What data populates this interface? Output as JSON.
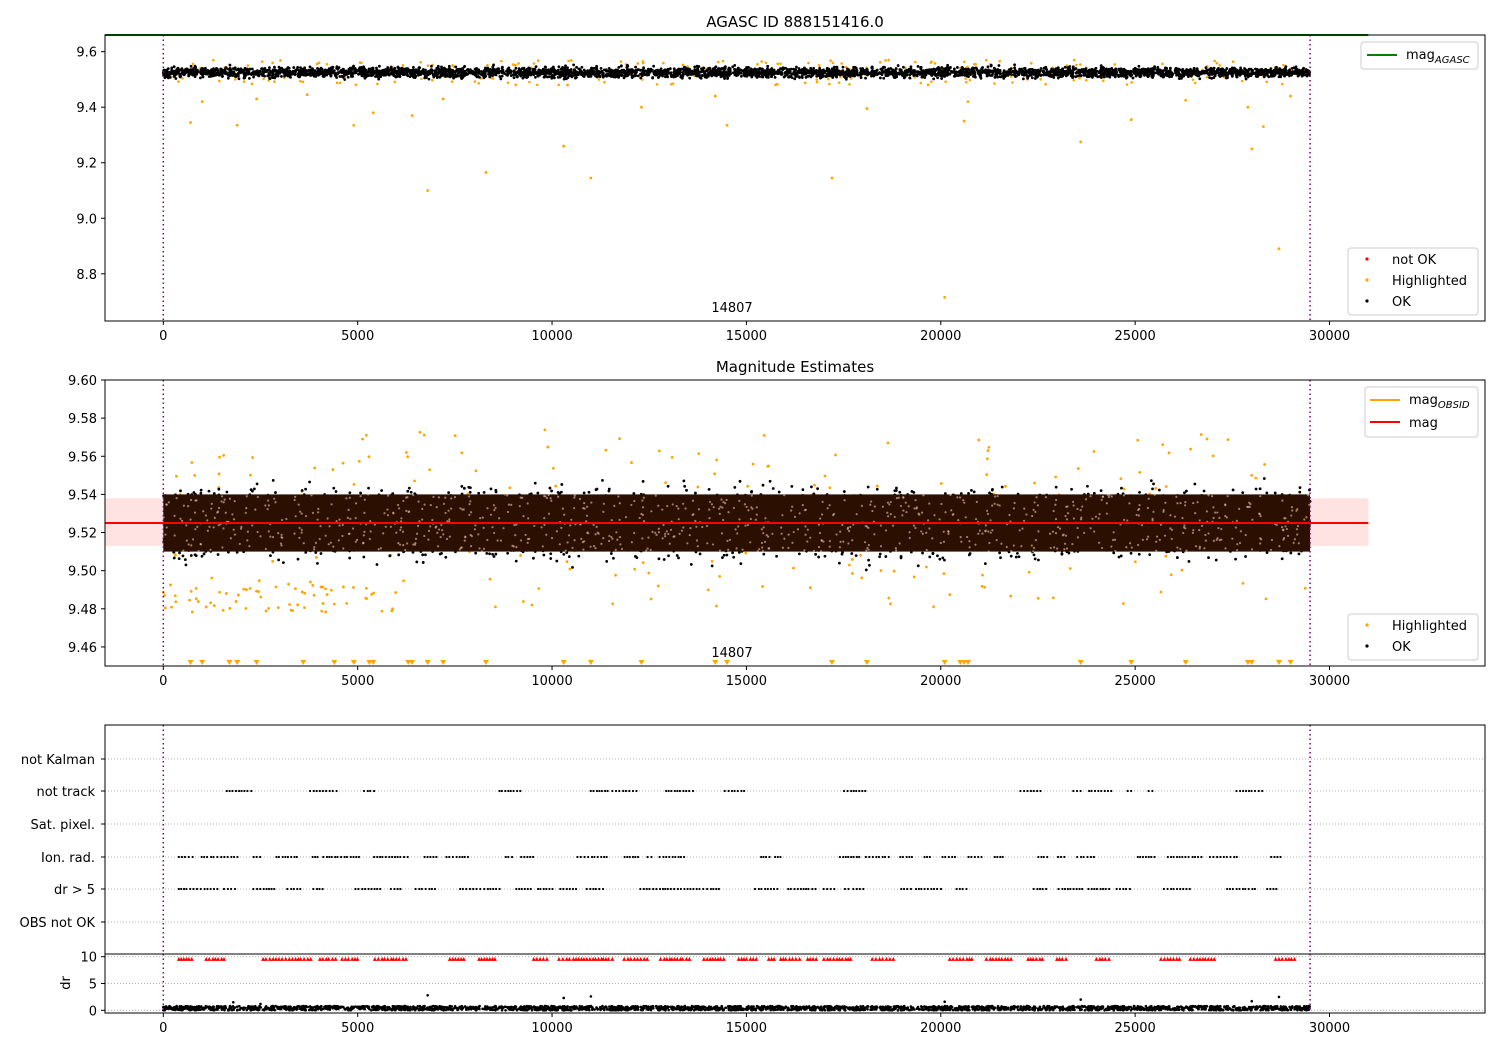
{
  "chart_data": [
    {
      "type": "scatter",
      "title": "AGASC ID 888151416.0",
      "xlim": [
        -1500,
        34000
      ],
      "ylim": [
        8.63,
        9.66
      ],
      "xticks": [
        "0",
        "5000",
        "10000",
        "15000",
        "20000",
        "25000",
        "30000"
      ],
      "yticks": [
        "8.8",
        "9.0",
        "9.2",
        "9.4",
        "9.6"
      ],
      "obsid_label": "14807",
      "vlines_x": [
        0,
        29500
      ],
      "lines": [
        {
          "name": "mag_AGASC",
          "color": "#008000",
          "y": 9.66,
          "x_range": [
            -1500,
            31000
          ]
        }
      ],
      "series": [
        {
          "name": "not OK",
          "color": "#ff0000",
          "points": []
        },
        {
          "name": "Highlighted",
          "color": "#ffa500",
          "y_band": [
            9.48,
            9.57
          ],
          "outliers": [
            [
              700,
              9.345
            ],
            [
              1000,
              9.42
            ],
            [
              1900,
              9.335
            ],
            [
              2400,
              9.43
            ],
            [
              3700,
              9.445
            ],
            [
              4900,
              9.335
            ],
            [
              5400,
              9.38
            ],
            [
              6400,
              9.37
            ],
            [
              6800,
              9.1
            ],
            [
              7200,
              9.43
            ],
            [
              8300,
              9.165
            ],
            [
              10300,
              9.26
            ],
            [
              10400,
              9.48
            ],
            [
              11000,
              9.145
            ],
            [
              12300,
              9.4
            ],
            [
              14200,
              9.44
            ],
            [
              14500,
              9.335
            ],
            [
              17200,
              9.145
            ],
            [
              18100,
              9.395
            ],
            [
              20100,
              8.715
            ],
            [
              20600,
              9.35
            ],
            [
              20700,
              9.42
            ],
            [
              23600,
              9.275
            ],
            [
              24900,
              9.355
            ],
            [
              26300,
              9.425
            ],
            [
              27900,
              9.4
            ],
            [
              28000,
              9.25
            ],
            [
              28300,
              9.33
            ],
            [
              28700,
              8.89
            ],
            [
              29000,
              9.44
            ]
          ]
        },
        {
          "name": "OK",
          "color": "#000000",
          "y_band": [
            9.49,
            9.56
          ],
          "x_range": [
            0,
            29500
          ]
        }
      ],
      "legend_upper": [
        "mag_AGASC"
      ],
      "legend_lower": [
        "not OK",
        "Highlighted",
        "OK"
      ],
      "legend_placement": [
        "upper right",
        "lower right"
      ]
    },
    {
      "type": "scatter",
      "title": "Magnitude Estimates",
      "xlim": [
        -1500,
        34000
      ],
      "ylim": [
        9.45,
        9.6
      ],
      "xticks": [
        "0",
        "5000",
        "10000",
        "15000",
        "20000",
        "25000",
        "30000"
      ],
      "yticks": [
        "9.46",
        "9.48",
        "9.50",
        "9.52",
        "9.54",
        "9.56",
        "9.58",
        "9.60"
      ],
      "obsid_label": "14807",
      "vlines_x": [
        0,
        29500
      ],
      "lines": [
        {
          "name": "mag_OBSID",
          "color": "#ffa500",
          "y": 9.525,
          "x_range": [
            0,
            29500
          ]
        },
        {
          "name": "mag",
          "color": "#ff0000",
          "y": 9.525,
          "band": [
            9.513,
            9.538
          ],
          "x_range": [
            -1500,
            31000
          ]
        }
      ],
      "series": [
        {
          "name": "Highlighted",
          "color": "#ffa500",
          "y_band": [
            9.48,
            9.575
          ],
          "clipped_below_x": [
            700,
            1000,
            1700,
            1900,
            2400,
            3600,
            4400,
            4900,
            5300,
            5400,
            6300,
            6400,
            6800,
            7200,
            8300,
            10300,
            11000,
            12300,
            14200,
            14500,
            17200,
            18100,
            20100,
            20500,
            20600,
            20700,
            23600,
            24900,
            26300,
            27900,
            28000,
            28700,
            29000
          ]
        },
        {
          "name": "OK",
          "color": "#000000",
          "y_band": [
            9.49,
            9.56
          ],
          "core_band": [
            9.51,
            9.54
          ],
          "x_range": [
            0,
            29500
          ]
        }
      ],
      "legend_upper": [
        "mag_OBSID",
        "mag"
      ],
      "legend_lower": [
        "Highlighted",
        "OK"
      ],
      "legend_placement": [
        "upper right",
        "lower right"
      ]
    },
    {
      "type": "scatter",
      "xlim": [
        -1500,
        34000
      ],
      "xticks": [
        "0",
        "5000",
        "10000",
        "15000",
        "20000",
        "25000",
        "30000"
      ],
      "vlines_x": [
        0,
        29500
      ],
      "flag_rows": [
        "not Kalman",
        "not track",
        "Sat. pixel.",
        "Ion. rad.",
        "dr > 5",
        "OBS not OK"
      ],
      "flag_density": {
        "not Kalman": 0.0,
        "not track": 0.35,
        "Sat. pixel.": 0.0,
        "Ion. rad.": 0.75,
        "dr > 5": 0.75,
        "OBS not OK": 0.0
      }
    },
    {
      "type": "scatter",
      "ylabel": "dr",
      "xlim": [
        -1500,
        34000
      ],
      "ylim": [
        -0.5,
        10.5
      ],
      "yticks": [
        "0",
        "5",
        "10"
      ],
      "xticks": [
        "0",
        "5000",
        "10000",
        "15000",
        "20000",
        "25000",
        "30000"
      ],
      "vlines_x": [
        0,
        29500
      ],
      "series": [
        {
          "name": "dr",
          "color": "#000000",
          "y_band": [
            0,
            0.8
          ],
          "outliers": [
            [
              1800,
              1.5
            ],
            [
              2500,
              1.2
            ],
            [
              6800,
              2.8
            ],
            [
              10300,
              2.3
            ],
            [
              11000,
              2.6
            ],
            [
              20100,
              1.6
            ],
            [
              23600,
              2.0
            ],
            [
              28000,
              1.7
            ],
            [
              28700,
              2.5
            ]
          ]
        },
        {
          "name": "dr clipped",
          "color": "#ff0000",
          "y": 9.6
        }
      ]
    }
  ]
}
